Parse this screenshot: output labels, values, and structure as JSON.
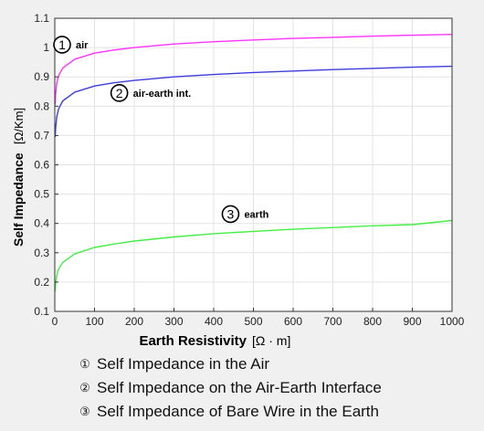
{
  "chart_data": {
    "type": "line",
    "title": "",
    "xlabel": "Earth Resistivity",
    "xlabel_unit": "[Ω · m]",
    "ylabel": "Self Impedance",
    "ylabel_unit": "[Ω/Km]",
    "xlim": [
      0,
      1000
    ],
    "ylim": [
      0.1,
      1.1
    ],
    "x_ticks": [
      0,
      100,
      200,
      300,
      400,
      500,
      600,
      700,
      800,
      900,
      1000
    ],
    "x_tick_labels": [
      "0",
      "100",
      "200",
      "300",
      "400",
      "500",
      "600",
      "700",
      "800",
      "900",
      "1000"
    ],
    "y_ticks": [
      0.1,
      0.2,
      0.3,
      0.4,
      0.5,
      0.6,
      0.7,
      0.8,
      0.9,
      1.0,
      1.1
    ],
    "y_tick_labels": [
      "0.1",
      "0.2",
      "0.3",
      "0.4",
      "0.5",
      "0.6",
      "0.7",
      "0.8",
      "0.9",
      "1",
      "1.1"
    ],
    "grid": true,
    "x": [
      1,
      2,
      5,
      10,
      20,
      50,
      100,
      150,
      200,
      300,
      400,
      500,
      600,
      700,
      800,
      900,
      1000
    ],
    "series": [
      {
        "name": "air",
        "color": "#ff33ff",
        "values": [
          0.805,
          0.84,
          0.88,
          0.905,
          0.93,
          0.96,
          0.981,
          0.992,
          1.0,
          1.012,
          1.02,
          1.026,
          1.031,
          1.035,
          1.039,
          1.042,
          1.045
        ],
        "annotation": {
          "marker": "1",
          "text": "air",
          "x": 46,
          "y": 1.01
        }
      },
      {
        "name": "air-earth int.",
        "color": "#3d3dde",
        "values": [
          0.695,
          0.725,
          0.765,
          0.792,
          0.818,
          0.848,
          0.869,
          0.88,
          0.888,
          0.9,
          0.908,
          0.915,
          0.92,
          0.925,
          0.929,
          0.933,
          0.936
        ],
        "annotation": {
          "marker": "2",
          "text": "air-earth int.",
          "x": 190,
          "y": 0.845
        }
      },
      {
        "name": "earth",
        "color": "#44ee44",
        "values": [
          0.168,
          0.193,
          0.224,
          0.245,
          0.267,
          0.296,
          0.318,
          0.33,
          0.34,
          0.354,
          0.365,
          0.373,
          0.38,
          0.386,
          0.392,
          0.396,
          0.41
        ],
        "annotation": {
          "marker": "3",
          "text": "earth",
          "x": 470,
          "y": 0.432
        }
      }
    ]
  },
  "captions": [
    {
      "num": "①",
      "text": "Self Impedance in the Air"
    },
    {
      "num": "②",
      "text": "Self Impedance on the Air-Earth Interface"
    },
    {
      "num": "③",
      "text": "Self Impedance of Bare Wire in the Earth"
    }
  ]
}
